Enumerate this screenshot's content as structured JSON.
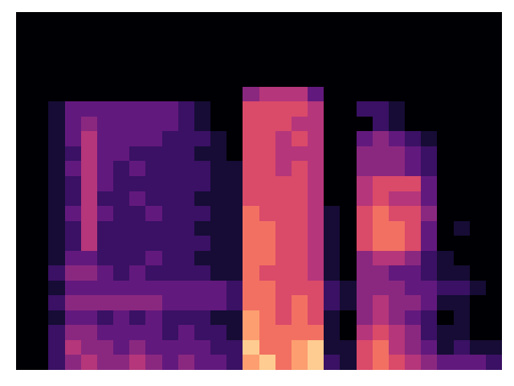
{
  "chart_data": {
    "type": "heatmap",
    "tick_labels": false,
    "zlim": [
      0,
      10
    ],
    "z": [
      [
        0,
        0,
        2,
        4,
        5,
        4,
        4,
        5,
        4,
        3,
        4,
        3,
        3,
        2,
        8,
        9,
        7,
        8,
        9,
        2,
        1,
        6,
        7,
        6,
        5,
        4,
        3,
        3,
        3,
        2
      ],
      [
        0,
        0,
        2,
        5,
        4,
        4,
        3,
        4,
        3,
        3,
        3,
        3,
        2,
        2,
        9,
        7,
        7,
        8,
        9,
        1,
        1,
        6,
        7,
        5,
        4,
        3,
        1,
        2,
        1,
        1
      ],
      [
        0,
        0,
        2,
        4,
        4,
        3,
        3,
        3,
        3,
        2,
        3,
        2,
        2,
        1,
        8,
        7,
        7,
        7,
        7,
        1,
        0,
        5,
        6,
        5,
        4,
        2,
        1,
        1,
        0,
        0
      ],
      [
        0,
        0,
        1,
        3,
        3,
        2,
        3,
        2,
        3,
        2,
        2,
        2,
        1,
        1,
        8,
        7,
        6,
        7,
        6,
        1,
        0,
        4,
        5,
        4,
        3,
        2,
        0,
        1,
        0,
        0
      ],
      [
        0,
        0,
        2,
        4,
        4,
        4,
        4,
        4,
        4,
        3,
        3,
        3,
        3,
        2,
        7,
        7,
        6,
        7,
        6,
        2,
        1,
        4,
        5,
        4,
        4,
        3,
        1,
        1,
        0,
        0
      ],
      [
        0,
        0,
        1,
        3,
        3,
        3,
        3,
        3,
        3,
        3,
        3,
        3,
        3,
        2,
        7,
        7,
        6,
        6,
        6,
        2,
        1,
        4,
        4,
        4,
        3,
        3,
        2,
        2,
        1,
        0
      ],
      [
        0,
        0,
        2,
        4,
        4,
        3,
        2,
        3,
        2,
        2,
        2,
        2,
        1,
        1,
        7,
        6,
        6,
        6,
        5,
        1,
        0,
        4,
        4,
        3,
        3,
        2,
        1,
        1,
        0,
        0
      ],
      [
        0,
        0,
        1,
        3,
        3,
        2,
        2,
        2,
        3,
        2,
        2,
        1,
        1,
        1,
        7,
        7,
        6,
        6,
        5,
        1,
        0,
        4,
        5,
        5,
        4,
        2,
        1,
        0,
        0,
        0
      ],
      [
        0,
        0,
        1,
        2,
        5,
        2,
        2,
        2,
        2,
        2,
        2,
        2,
        1,
        1,
        7,
        7,
        6,
        6,
        5,
        1,
        0,
        6,
        7,
        7,
        6,
        3,
        0,
        0,
        0,
        0
      ],
      [
        0,
        0,
        1,
        2,
        5,
        2,
        2,
        2,
        2,
        2,
        2,
        1,
        1,
        1,
        7,
        7,
        6,
        6,
        5,
        1,
        0,
        6,
        7,
        7,
        6,
        3,
        0,
        1,
        0,
        0
      ],
      [
        0,
        0,
        1,
        3,
        5,
        3,
        2,
        2,
        3,
        2,
        2,
        2,
        1,
        1,
        7,
        6,
        6,
        6,
        5,
        1,
        0,
        6,
        7,
        6,
        6,
        4,
        0,
        0,
        0,
        0
      ],
      [
        0,
        0,
        1,
        2,
        5,
        2,
        2,
        3,
        2,
        2,
        2,
        1,
        1,
        1,
        6,
        6,
        6,
        6,
        5,
        0,
        0,
        5,
        6,
        5,
        5,
        3,
        0,
        0,
        0,
        0
      ],
      [
        0,
        0,
        1,
        2,
        5,
        3,
        2,
        2,
        2,
        2,
        2,
        2,
        1,
        1,
        6,
        6,
        6,
        6,
        5,
        0,
        0,
        5,
        6,
        6,
        6,
        3,
        0,
        0,
        0,
        0
      ],
      [
        0,
        0,
        1,
        3,
        5,
        3,
        2,
        3,
        2,
        2,
        2,
        2,
        1,
        1,
        6,
        6,
        5,
        6,
        5,
        0,
        0,
        4,
        4,
        4,
        3,
        2,
        0,
        0,
        0,
        0
      ],
      [
        0,
        0,
        1,
        2,
        5,
        3,
        3,
        2,
        2,
        2,
        2,
        1,
        1,
        0,
        6,
        6,
        5,
        5,
        5,
        0,
        0,
        4,
        4,
        4,
        3,
        2,
        0,
        0,
        0,
        0
      ],
      [
        0,
        0,
        1,
        3,
        5,
        3,
        3,
        3,
        3,
        2,
        2,
        2,
        1,
        0,
        6,
        6,
        5,
        6,
        5,
        0,
        0,
        3,
        4,
        3,
        2,
        1,
        0,
        0,
        0,
        0
      ],
      [
        0,
        0,
        1,
        3,
        4,
        3,
        3,
        3,
        3,
        3,
        2,
        1,
        0,
        0,
        6,
        6,
        6,
        5,
        5,
        0,
        0,
        0,
        2,
        1,
        0,
        0,
        0,
        0,
        0,
        0
      ],
      [
        0,
        0,
        1,
        3,
        3,
        3,
        3,
        3,
        3,
        3,
        2,
        1,
        0,
        0,
        6,
        6,
        6,
        6,
        5,
        0,
        0,
        2,
        2,
        1,
        0,
        0,
        0,
        0,
        0,
        0
      ],
      [
        0,
        0,
        0,
        0,
        0,
        0,
        0,
        0,
        0,
        0,
        0,
        0,
        0,
        0,
        4,
        5,
        5,
        5,
        3,
        0,
        0,
        0,
        0,
        0,
        0,
        0,
        0,
        0,
        0,
        0
      ],
      [
        0,
        0,
        0,
        0,
        0,
        0,
        0,
        0,
        0,
        0,
        0,
        0,
        0,
        0,
        0,
        0,
        0,
        0,
        0,
        0,
        0,
        0,
        0,
        0,
        0,
        0,
        0,
        0,
        0,
        0
      ],
      [
        0,
        0,
        0,
        0,
        0,
        0,
        0,
        0,
        0,
        0,
        0,
        0,
        0,
        0,
        0,
        0,
        0,
        0,
        0,
        0,
        0,
        0,
        0,
        0,
        0,
        0,
        0,
        0,
        0,
        0
      ],
      [
        0,
        0,
        0,
        0,
        0,
        0,
        0,
        0,
        0,
        0,
        0,
        0,
        0,
        0,
        0,
        0,
        0,
        0,
        0,
        0,
        0,
        0,
        0,
        0,
        0,
        0,
        0,
        0,
        0,
        0
      ],
      [
        0,
        0,
        0,
        0,
        0,
        0,
        0,
        0,
        0,
        0,
        0,
        0,
        0,
        0,
        0,
        0,
        0,
        0,
        0,
        0,
        0,
        0,
        0,
        0,
        0,
        0,
        0,
        0,
        0,
        0
      ],
      [
        0,
        0,
        0,
        0,
        0,
        0,
        0,
        0,
        0,
        0,
        0,
        0,
        0,
        0,
        0,
        0,
        0,
        0,
        0,
        0,
        0,
        0,
        0,
        0,
        0,
        0,
        0,
        0,
        0,
        0
      ]
    ]
  }
}
